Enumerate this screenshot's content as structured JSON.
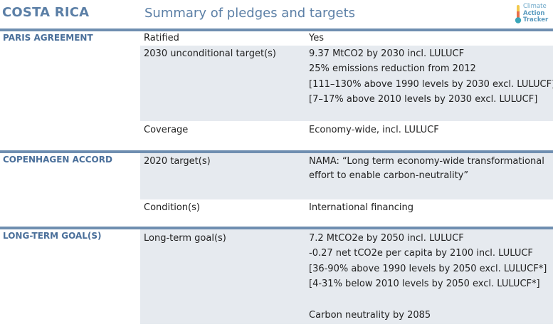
{
  "header": {
    "country": "COSTA RICA",
    "subtitle": "Summary of pledges and targets",
    "logo": {
      "line1": "Climate",
      "line2": "Action",
      "line3": "Tracker",
      "icon": "thermometer-icon"
    }
  },
  "colors": {
    "accent": "#5b7fa6",
    "rule": "#6f8eb0",
    "band": "#e6eaef"
  },
  "sections": [
    {
      "title": "PARIS AGREEMENT",
      "rows": [
        {
          "label": "Ratified",
          "value": [
            "Yes"
          ]
        },
        {
          "label": "2030 unconditional target(s)",
          "value": [
            "9.37 MtCO2 by 2030 incl. LULUCF",
            "25% emissions reduction from 2012",
            "[111–130% above 1990 levels by 2030 excl. LULUCF]",
            "[7–17% above 2010 levels by 2030 excl. LULUCF]"
          ]
        },
        {
          "label": "Coverage",
          "value": [
            "Economy-wide, incl. LULUCF"
          ]
        }
      ]
    },
    {
      "title": "COPENHAGEN ACCORD",
      "rows": [
        {
          "label": "2020 target(s)",
          "value": [
            "NAMA: “Long term economy-wide transformational",
            "effort to enable carbon-neutrality”"
          ]
        },
        {
          "label": "Condition(s)",
          "value": [
            "International financing"
          ]
        }
      ]
    },
    {
      "title": "LONG-TERM GOAL(S)",
      "rows": [
        {
          "label": "Long-term goal(s)",
          "value": [
            "7.2 MtCO2e by 2050 incl. LULUCF",
            "-0.27 net tCO2e per capita by 2100 incl. LULUCF",
            "[36-90% above 1990 levels by 2050 excl. LULUCF*]",
            "[4-31% below 2010 levels by 2050 excl. LULUCF*]",
            "",
            "Carbon neutrality by 2085"
          ]
        }
      ]
    }
  ]
}
